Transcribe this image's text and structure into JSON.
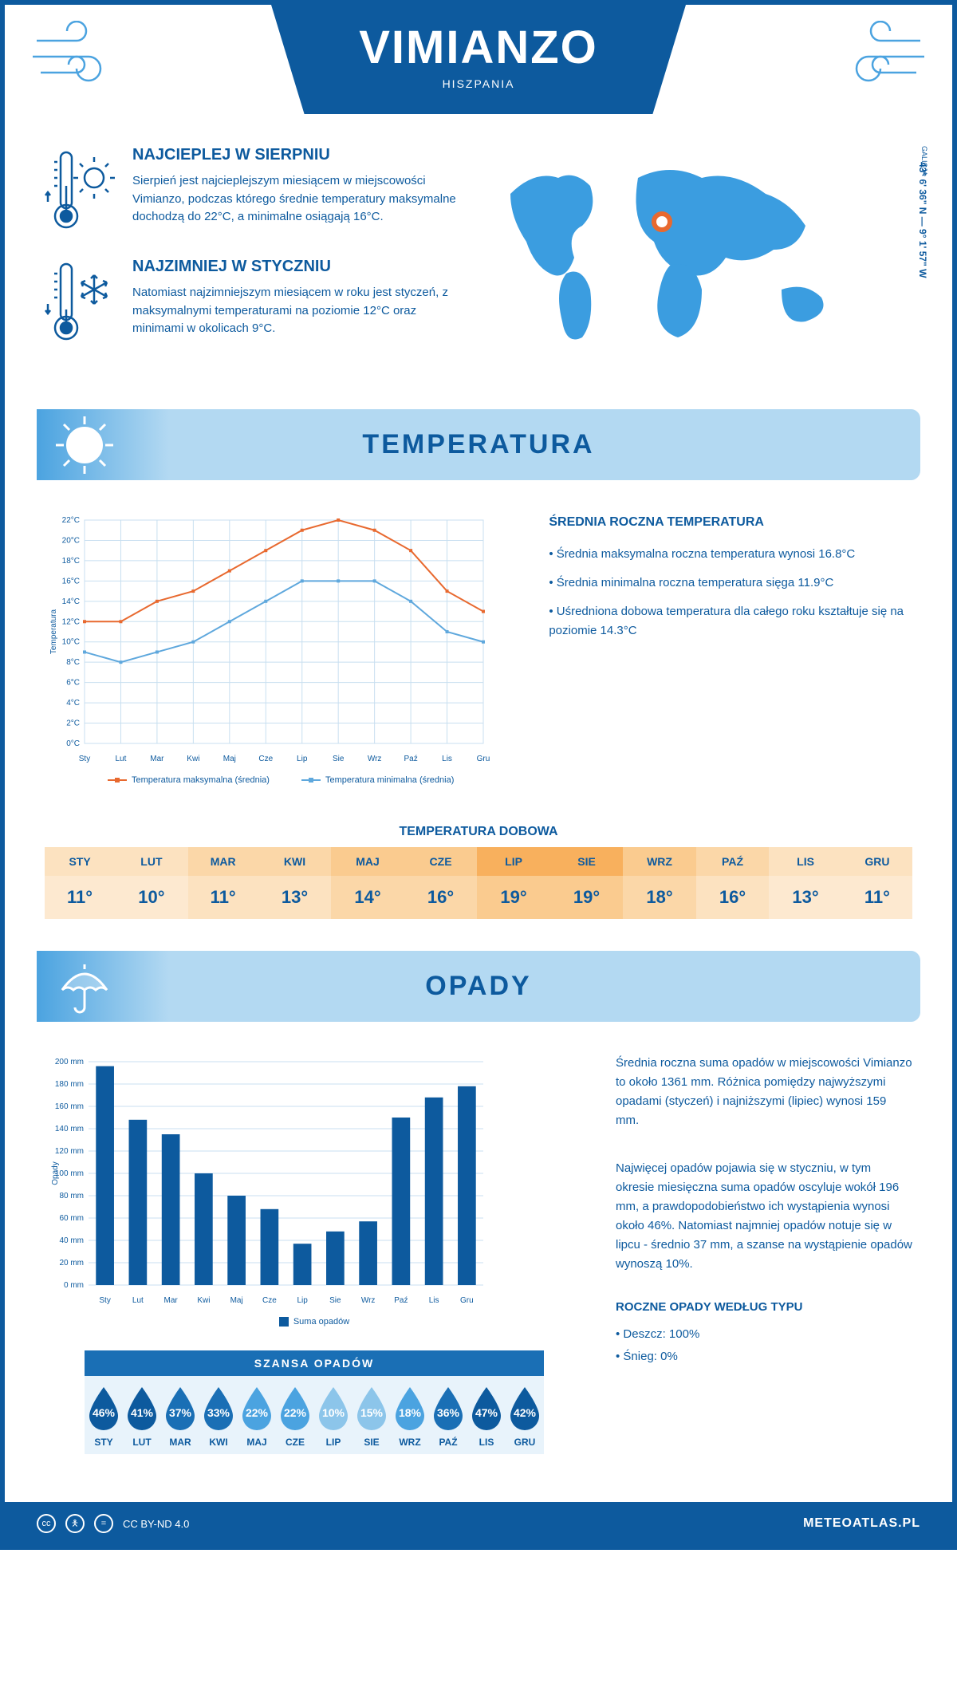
{
  "header": {
    "title": "VIMIANZO",
    "country": "HISZPANIA"
  },
  "coords": "43° 6' 36\" N — 9° 1' 57\" W",
  "region": "GALICJA",
  "warmest": {
    "title": "NAJCIEPLEJ W SIERPNIU",
    "text": "Sierpień jest najcieplejszym miesiącem w miejscowości Vimianzo, podczas którego średnie temperatury maksymalne dochodzą do 22°C, a minimalne osiągają 16°C."
  },
  "coldest": {
    "title": "NAJZIMNIEJ W STYCZNIU",
    "text": "Natomiast najzimniejszym miesiącem w roku jest styczeń, z maksymalnymi temperaturami na poziomie 12°C oraz minimami w okolicach 9°C."
  },
  "section_temp": "TEMPERATURA",
  "section_precip": "OPADY",
  "temp_chart": {
    "type": "line",
    "months": [
      "Sty",
      "Lut",
      "Mar",
      "Kwi",
      "Maj",
      "Cze",
      "Lip",
      "Sie",
      "Wrz",
      "Paź",
      "Lis",
      "Gru"
    ],
    "max_series": [
      12,
      12,
      14,
      15,
      17,
      19,
      21,
      22,
      21,
      19,
      15,
      13
    ],
    "min_series": [
      9,
      8,
      9,
      10,
      12,
      14,
      16,
      16,
      16,
      14,
      11,
      10
    ],
    "max_color": "#e8692f",
    "min_color": "#5fa8dd",
    "grid_color": "#c8dff0",
    "ylim": [
      0,
      22
    ],
    "ytick_step": 2,
    "y_suffix": "°C",
    "y_axis_label": "Temperatura",
    "legend_max": "Temperatura maksymalna (średnia)",
    "legend_min": "Temperatura minimalna (średnia)",
    "line_width": 2,
    "marker_size": 4
  },
  "temp_summary": {
    "title": "ŚREDNIA ROCZNA TEMPERATURA",
    "bullets": [
      "• Średnia maksymalna roczna temperatura wynosi 16.8°C",
      "• Średnia minimalna roczna temperatura sięga 11.9°C",
      "• Uśredniona dobowa temperatura dla całego roku kształtuje się na poziomie 14.3°C"
    ]
  },
  "daily_temp": {
    "title": "TEMPERATURA DOBOWA",
    "months": [
      "STY",
      "LUT",
      "MAR",
      "KWI",
      "MAJ",
      "CZE",
      "LIP",
      "SIE",
      "WRZ",
      "PAŹ",
      "LIS",
      "GRU"
    ],
    "values": [
      "11°",
      "10°",
      "11°",
      "13°",
      "14°",
      "16°",
      "19°",
      "19°",
      "18°",
      "16°",
      "13°",
      "11°"
    ],
    "header_colors": [
      "#fce2c0",
      "#fce2c0",
      "#fbd7a8",
      "#fbd7a8",
      "#facb8f",
      "#facb8f",
      "#f8b05d",
      "#f8b05d",
      "#facb8f",
      "#fbd7a8",
      "#fce2c0",
      "#fce2c0"
    ],
    "value_colors": [
      "#fde9d0",
      "#fde9d0",
      "#fce2c0",
      "#fce2c0",
      "#fbd7a8",
      "#fbd7a8",
      "#facb8f",
      "#facb8f",
      "#fbd7a8",
      "#fce2c0",
      "#fde9d0",
      "#fde9d0"
    ]
  },
  "precip_chart": {
    "type": "bar",
    "months": [
      "Sty",
      "Lut",
      "Mar",
      "Kwi",
      "Maj",
      "Cze",
      "Lip",
      "Sie",
      "Wrz",
      "Paź",
      "Lis",
      "Gru"
    ],
    "values": [
      196,
      148,
      135,
      100,
      80,
      68,
      37,
      48,
      57,
      150,
      168,
      178
    ],
    "bar_color": "#0d5a9e",
    "ylim": [
      0,
      200
    ],
    "ytick_step": 20,
    "y_suffix": " mm",
    "y_axis_label": "Opady",
    "legend": "Suma opadów",
    "bar_width": 0.55
  },
  "precip_text": {
    "p1": "Średnia roczna suma opadów w miejscowości Vimianzo to około 1361 mm. Różnica pomiędzy najwyższymi opadami (styczeń) i najniższymi (lipiec) wynosi 159 mm.",
    "p2": "Najwięcej opadów pojawia się w styczniu, w tym okresie miesięczna suma opadów oscyluje wokół 196 mm, a prawdopodobieństwo ich wystąpienia wynosi około 46%. Natomiast najmniej opadów notuje się w lipcu - średnio 37 mm, a szanse na wystąpienie opadów wynoszą 10%."
  },
  "precip_chance": {
    "title": "SZANSA OPADÓW",
    "months": [
      "STY",
      "LUT",
      "MAR",
      "KWI",
      "MAJ",
      "CZE",
      "LIP",
      "SIE",
      "WRZ",
      "PAŹ",
      "LIS",
      "GRU"
    ],
    "values": [
      "46%",
      "41%",
      "37%",
      "33%",
      "22%",
      "22%",
      "10%",
      "15%",
      "18%",
      "36%",
      "47%",
      "42%"
    ],
    "colors": [
      "#0d5a9e",
      "#0d5a9e",
      "#1a6fb5",
      "#1a6fb5",
      "#4ba3e0",
      "#4ba3e0",
      "#8cc5ea",
      "#8cc5ea",
      "#4ba3e0",
      "#1a6fb5",
      "#0d5a9e",
      "#0d5a9e"
    ],
    "bg_color": "#e8f3fb"
  },
  "yearly_type": {
    "title": "ROCZNE OPADY WEDŁUG TYPU",
    "rain": "• Deszcz: 100%",
    "snow": "• Śnieg: 0%"
  },
  "footer": {
    "license": "CC BY-ND 4.0",
    "site": "METEOATLAS.PL"
  }
}
